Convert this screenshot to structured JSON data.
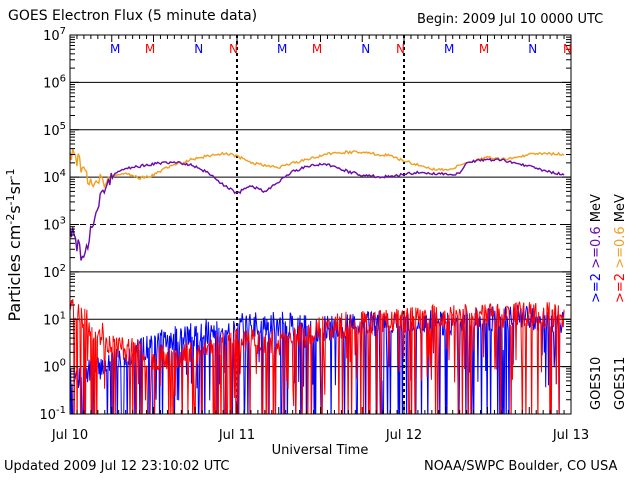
{
  "header": {
    "title": "GOES Electron Flux (5 minute data)",
    "begin": "Begin: 2009 Jul 10 0000 UTC"
  },
  "footer": {
    "updated": "Updated 2009 Jul 12 23:10:02 UTC",
    "credit": "NOAA/SWPC Boulder, CO USA"
  },
  "colors": {
    "blue": "#0000ff",
    "red": "#ff0000",
    "purple": "#6a0aa8",
    "orange": "#f0a020",
    "black": "#000000"
  },
  "chart_data": {
    "type": "line",
    "title": "GOES Electron Flux (5 minute data)",
    "xlabel": "Universal Time",
    "ylabel": "Particles cm-2s-1sr-1",
    "yscale": "log",
    "ylim": [
      0.1,
      10000000
    ],
    "xlim": [
      0,
      72
    ],
    "x_unit": "hours since 2009 Jul 10 0000 UTC",
    "y_ticks": [
      {
        "value": 0.1,
        "mantissa": "10",
        "exp": "-1"
      },
      {
        "value": 1,
        "mantissa": "10",
        "exp": "0"
      },
      {
        "value": 10,
        "mantissa": "10",
        "exp": "1"
      },
      {
        "value": 100,
        "mantissa": "10",
        "exp": "2"
      },
      {
        "value": 1000,
        "mantissa": "10",
        "exp": "3"
      },
      {
        "value": 10000,
        "mantissa": "10",
        "exp": "4"
      },
      {
        "value": 100000,
        "mantissa": "10",
        "exp": "5"
      },
      {
        "value": 1000000,
        "mantissa": "10",
        "exp": "6"
      },
      {
        "value": 10000000,
        "mantissa": "10",
        "exp": "7"
      }
    ],
    "x_ticks": [
      {
        "value": 0,
        "label": "Jul 10"
      },
      {
        "value": 24,
        "label": "Jul 11"
      },
      {
        "value": 48,
        "label": "Jul 12"
      },
      {
        "value": 72,
        "label": "Jul 13"
      }
    ],
    "threshold_lines": [
      {
        "value": 1000,
        "style": "dashed"
      }
    ],
    "mn_markers": [
      {
        "hour": 6.5,
        "label": "M",
        "color": "blue"
      },
      {
        "hour": 11.5,
        "label": "M",
        "color": "red"
      },
      {
        "hour": 18.5,
        "label": "N",
        "color": "blue"
      },
      {
        "hour": 23.5,
        "label": "N",
        "color": "red"
      },
      {
        "hour": 30.5,
        "label": "M",
        "color": "blue"
      },
      {
        "hour": 35.5,
        "label": "M",
        "color": "red"
      },
      {
        "hour": 42.5,
        "label": "N",
        "color": "blue"
      },
      {
        "hour": 47.5,
        "label": "N",
        "color": "red"
      },
      {
        "hour": 54.5,
        "label": "M",
        "color": "blue"
      },
      {
        "hour": 59.5,
        "label": "M",
        "color": "red"
      },
      {
        "hour": 66.5,
        "label": "N",
        "color": "blue"
      },
      {
        "hour": 71.5,
        "label": "N",
        "color": "red"
      }
    ],
    "legend": {
      "placement": "right",
      "columns": [
        {
          "segments": [
            {
              "text": ">=2",
              "color": "blue"
            },
            {
              "text": " >=0.6",
              "color": "purple"
            },
            {
              "text": " MeV",
              "color": "black"
            }
          ]
        },
        {
          "segments": [
            {
              "text": ">=2",
              "color": "red"
            },
            {
              "text": " >=0.6",
              "color": "orange"
            },
            {
              "text": " MeV",
              "color": "black"
            }
          ]
        }
      ],
      "satellites": [
        {
          "text": "GOES10",
          "color": "black"
        },
        {
          "text": "GOES11",
          "color": "black"
        }
      ]
    },
    "series": [
      {
        "name": "GOES11 >=0.6 MeV",
        "color": "orange",
        "style": "smooth",
        "x": [
          0,
          1,
          2,
          3,
          4,
          5,
          6,
          8,
          10,
          12,
          14,
          18,
          22,
          24,
          26,
          28,
          30,
          34,
          38,
          42,
          46,
          48,
          50,
          52,
          54,
          56,
          58,
          60,
          62,
          64,
          66,
          68,
          70,
          71
        ],
        "values": [
          35000,
          25000,
          12000,
          6500,
          9000,
          7500,
          10000,
          12000,
          9500,
          11000,
          16000,
          25000,
          32000,
          28000,
          20000,
          18000,
          16000,
          24000,
          33000,
          34000,
          28000,
          22000,
          18000,
          15000,
          14000,
          18000,
          22000,
          26000,
          24000,
          26000,
          30000,
          32000,
          31000,
          30000
        ]
      },
      {
        "name": "GOES10 >=0.6 MeV",
        "color": "purple",
        "style": "smooth",
        "x": [
          0,
          1,
          2,
          3,
          4,
          5,
          6,
          7,
          8,
          10,
          12,
          14,
          16,
          18,
          20,
          22,
          24,
          25,
          26,
          28,
          30,
          32,
          34,
          36,
          38,
          40,
          42,
          44,
          46,
          48,
          50,
          52,
          54,
          56,
          57,
          58,
          60,
          62,
          64,
          66,
          68,
          70,
          71
        ],
        "values": [
          900,
          400,
          150,
          700,
          2500,
          6000,
          10000,
          13000,
          15000,
          17000,
          19000,
          20000,
          20000,
          17000,
          12000,
          7000,
          4500,
          5500,
          6500,
          5000,
          8000,
          13000,
          17000,
          19000,
          17000,
          13000,
          11000,
          10500,
          10000,
          11500,
          12500,
          12000,
          11500,
          12000,
          20000,
          22000,
          23000,
          23500,
          20000,
          17000,
          14000,
          12000,
          11500
        ]
      },
      {
        "name": "GOES10 >=2 MeV",
        "color": "blue",
        "style": "noisy",
        "seed": 7,
        "x": [
          0,
          6,
          12,
          18,
          24,
          30,
          36,
          42,
          48,
          54,
          60,
          66,
          71
        ],
        "values": [
          0.5,
          1.2,
          3,
          5,
          7,
          8,
          6,
          8,
          9,
          8,
          10,
          11,
          9
        ]
      },
      {
        "name": "GOES11 >=2 MeV",
        "color": "red",
        "style": "noisy",
        "seed": 23,
        "x": [
          0,
          6,
          12,
          18,
          24,
          30,
          36,
          42,
          48,
          54,
          60,
          66,
          71
        ],
        "values": [
          18,
          3,
          1.5,
          2,
          4,
          3,
          6,
          9,
          10,
          11,
          12,
          13,
          12
        ]
      }
    ]
  }
}
